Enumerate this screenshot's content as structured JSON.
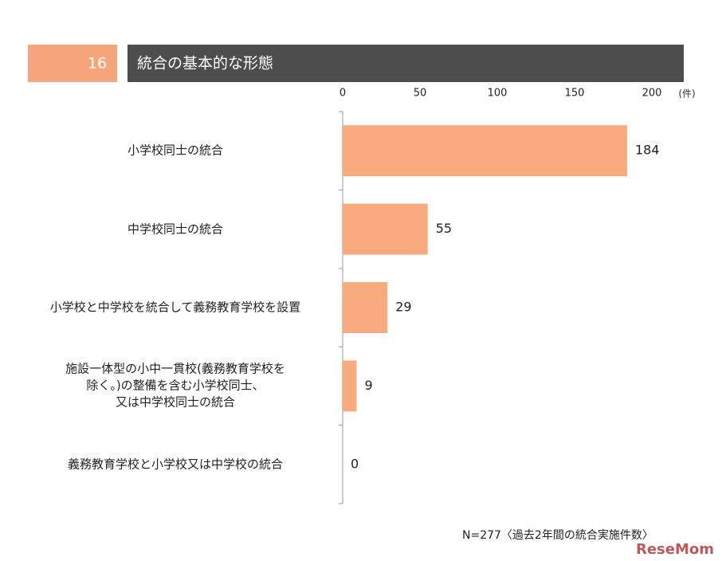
{
  "chart_data": {
    "type": "bar",
    "orientation": "horizontal",
    "section_number": "16",
    "title": "統合の基本的な形態",
    "unit": "(件)",
    "categories": [
      "小学校同士の統合",
      "中学校同士の統合",
      "小学校と中学校を統合して義務教育学校を設置",
      "施設一体型の小中一貫校(義務教育学校を\n除く。)の整備を含む小学校同士、\n又は中学校同士の統合",
      "義務教育学校と小学校又は中学校の統合"
    ],
    "values": [
      184,
      55,
      29,
      9,
      0
    ],
    "color": "#f7ab7e",
    "xlim": [
      0,
      200
    ],
    "xticks": [
      0,
      50,
      100,
      150,
      200
    ],
    "note": "N=277〈過去2年間の統合実施件数〉",
    "watermark": "ReseMom"
  }
}
